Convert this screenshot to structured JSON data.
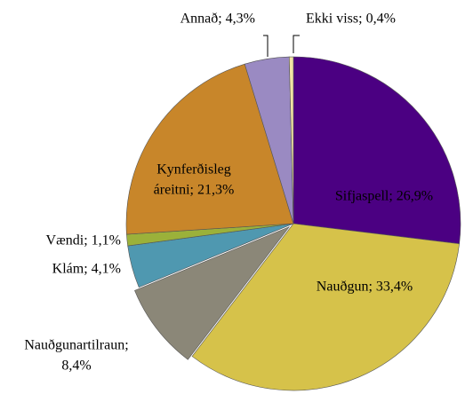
{
  "chart_data": {
    "type": "pie",
    "values": [
      26.9,
      33.4,
      8.4,
      4.1,
      1.1,
      21.3,
      4.3,
      0.4
    ],
    "value_labels": [
      [
        "Sifjaspell; 26,9%"
      ],
      [
        "Nauðgun; 33,4%"
      ],
      [
        "Nauðgunartilraun;",
        "8,4%"
      ],
      [
        "Klám; 4,1%"
      ],
      [
        "Vændi; 1,1%"
      ],
      [
        "Kynferðisleg",
        "áreitni; 21,3%"
      ],
      [
        "Annað; 4,3%"
      ],
      [
        "Ekki viss; 0,4%"
      ]
    ],
    "colors": [
      "#4b0082",
      "#d6c24a",
      "#8b8778",
      "#4f98b0",
      "#9bb13a",
      "#c8862a",
      "#9a8ac2",
      "#f1e3a4"
    ]
  }
}
